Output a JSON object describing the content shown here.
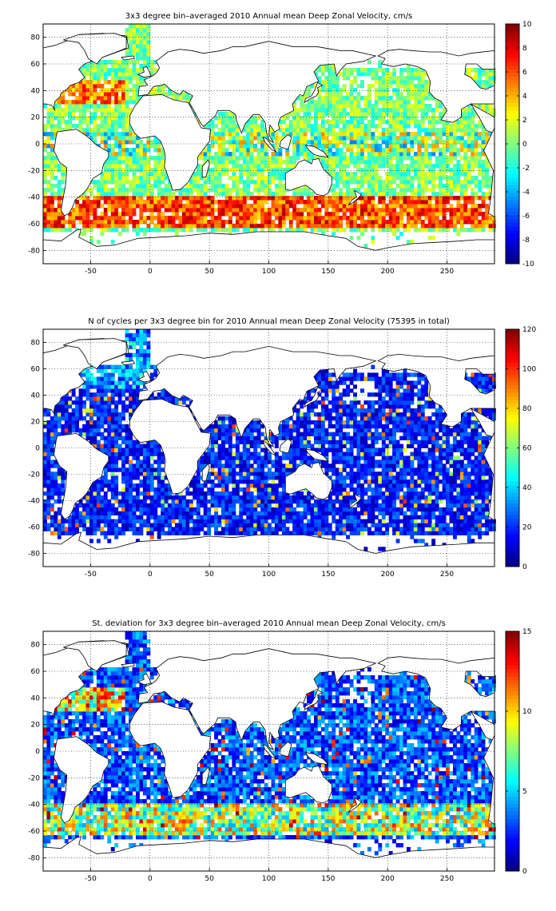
{
  "chart_data": [
    {
      "type": "heatmap",
      "title": "3x3 degree bin–averaged 2010 Annual mean Deep Zonal Velocity, cm/s",
      "xlim": [
        -90,
        290
      ],
      "ylim": [
        -90,
        90
      ],
      "xticks": [
        -50,
        0,
        50,
        100,
        150,
        200,
        250
      ],
      "yticks": [
        80,
        60,
        40,
        20,
        0,
        -20,
        -40,
        -60,
        -80
      ],
      "grid": true,
      "colormap": "jet",
      "clim": [
        -10,
        10
      ],
      "colorbar_ticks": [
        10,
        8,
        6,
        4,
        2,
        0,
        -2,
        -4,
        -6,
        -8,
        -10
      ],
      "bin_size_deg": 3,
      "field": "zonal_velocity"
    },
    {
      "type": "heatmap",
      "title": "N of cycles per 3x3 degree bin for 2010 Annual mean Deep Zonal Velocity (75395 in total)",
      "xlim": [
        -90,
        290
      ],
      "ylim": [
        -90,
        90
      ],
      "xticks": [
        -50,
        0,
        50,
        100,
        150,
        200,
        250
      ],
      "yticks": [
        80,
        60,
        40,
        20,
        0,
        -20,
        -40,
        -60,
        -80
      ],
      "grid": true,
      "colormap": "jet",
      "clim": [
        0,
        120
      ],
      "colorbar_ticks": [
        120,
        100,
        80,
        60,
        40,
        20,
        0
      ],
      "bin_size_deg": 3,
      "field": "cycle_count"
    },
    {
      "type": "heatmap",
      "title": "St. deviation for 3x3 degree bin–averaged 2010 Annual mean Deep Zonal Velocity, cm/s",
      "xlim": [
        -90,
        290
      ],
      "ylim": [
        -90,
        90
      ],
      "xticks": [
        -50,
        0,
        50,
        100,
        150,
        200,
        250
      ],
      "yticks": [
        80,
        60,
        40,
        20,
        0,
        -20,
        -40,
        -60,
        -80
      ],
      "grid": true,
      "colormap": "jet",
      "clim": [
        0,
        15
      ],
      "colorbar_ticks": [
        15,
        10,
        5,
        0
      ],
      "bin_size_deg": 3,
      "field": "std_deviation"
    }
  ]
}
